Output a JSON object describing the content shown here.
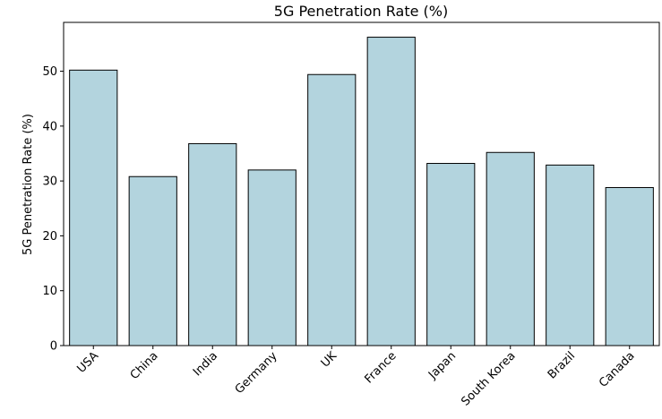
{
  "chart_data": {
    "type": "bar",
    "title": "5G Penetration Rate (%)",
    "xlabel": "",
    "ylabel": "5G Penetration Rate (%)",
    "categories": [
      "USA",
      "China",
      "India",
      "Germany",
      "UK",
      "France",
      "Japan",
      "South Korea",
      "Brazil",
      "Canada"
    ],
    "values": [
      50.2,
      30.8,
      36.8,
      32.0,
      49.4,
      56.2,
      33.2,
      35.2,
      32.9,
      28.8
    ],
    "ylim": [
      0,
      58.9
    ],
    "yticks": [
      0,
      10,
      20,
      30,
      40,
      50
    ],
    "grid": false,
    "legend": "none",
    "bar_color": "#b3d4de",
    "edge_color": "#000000"
  }
}
